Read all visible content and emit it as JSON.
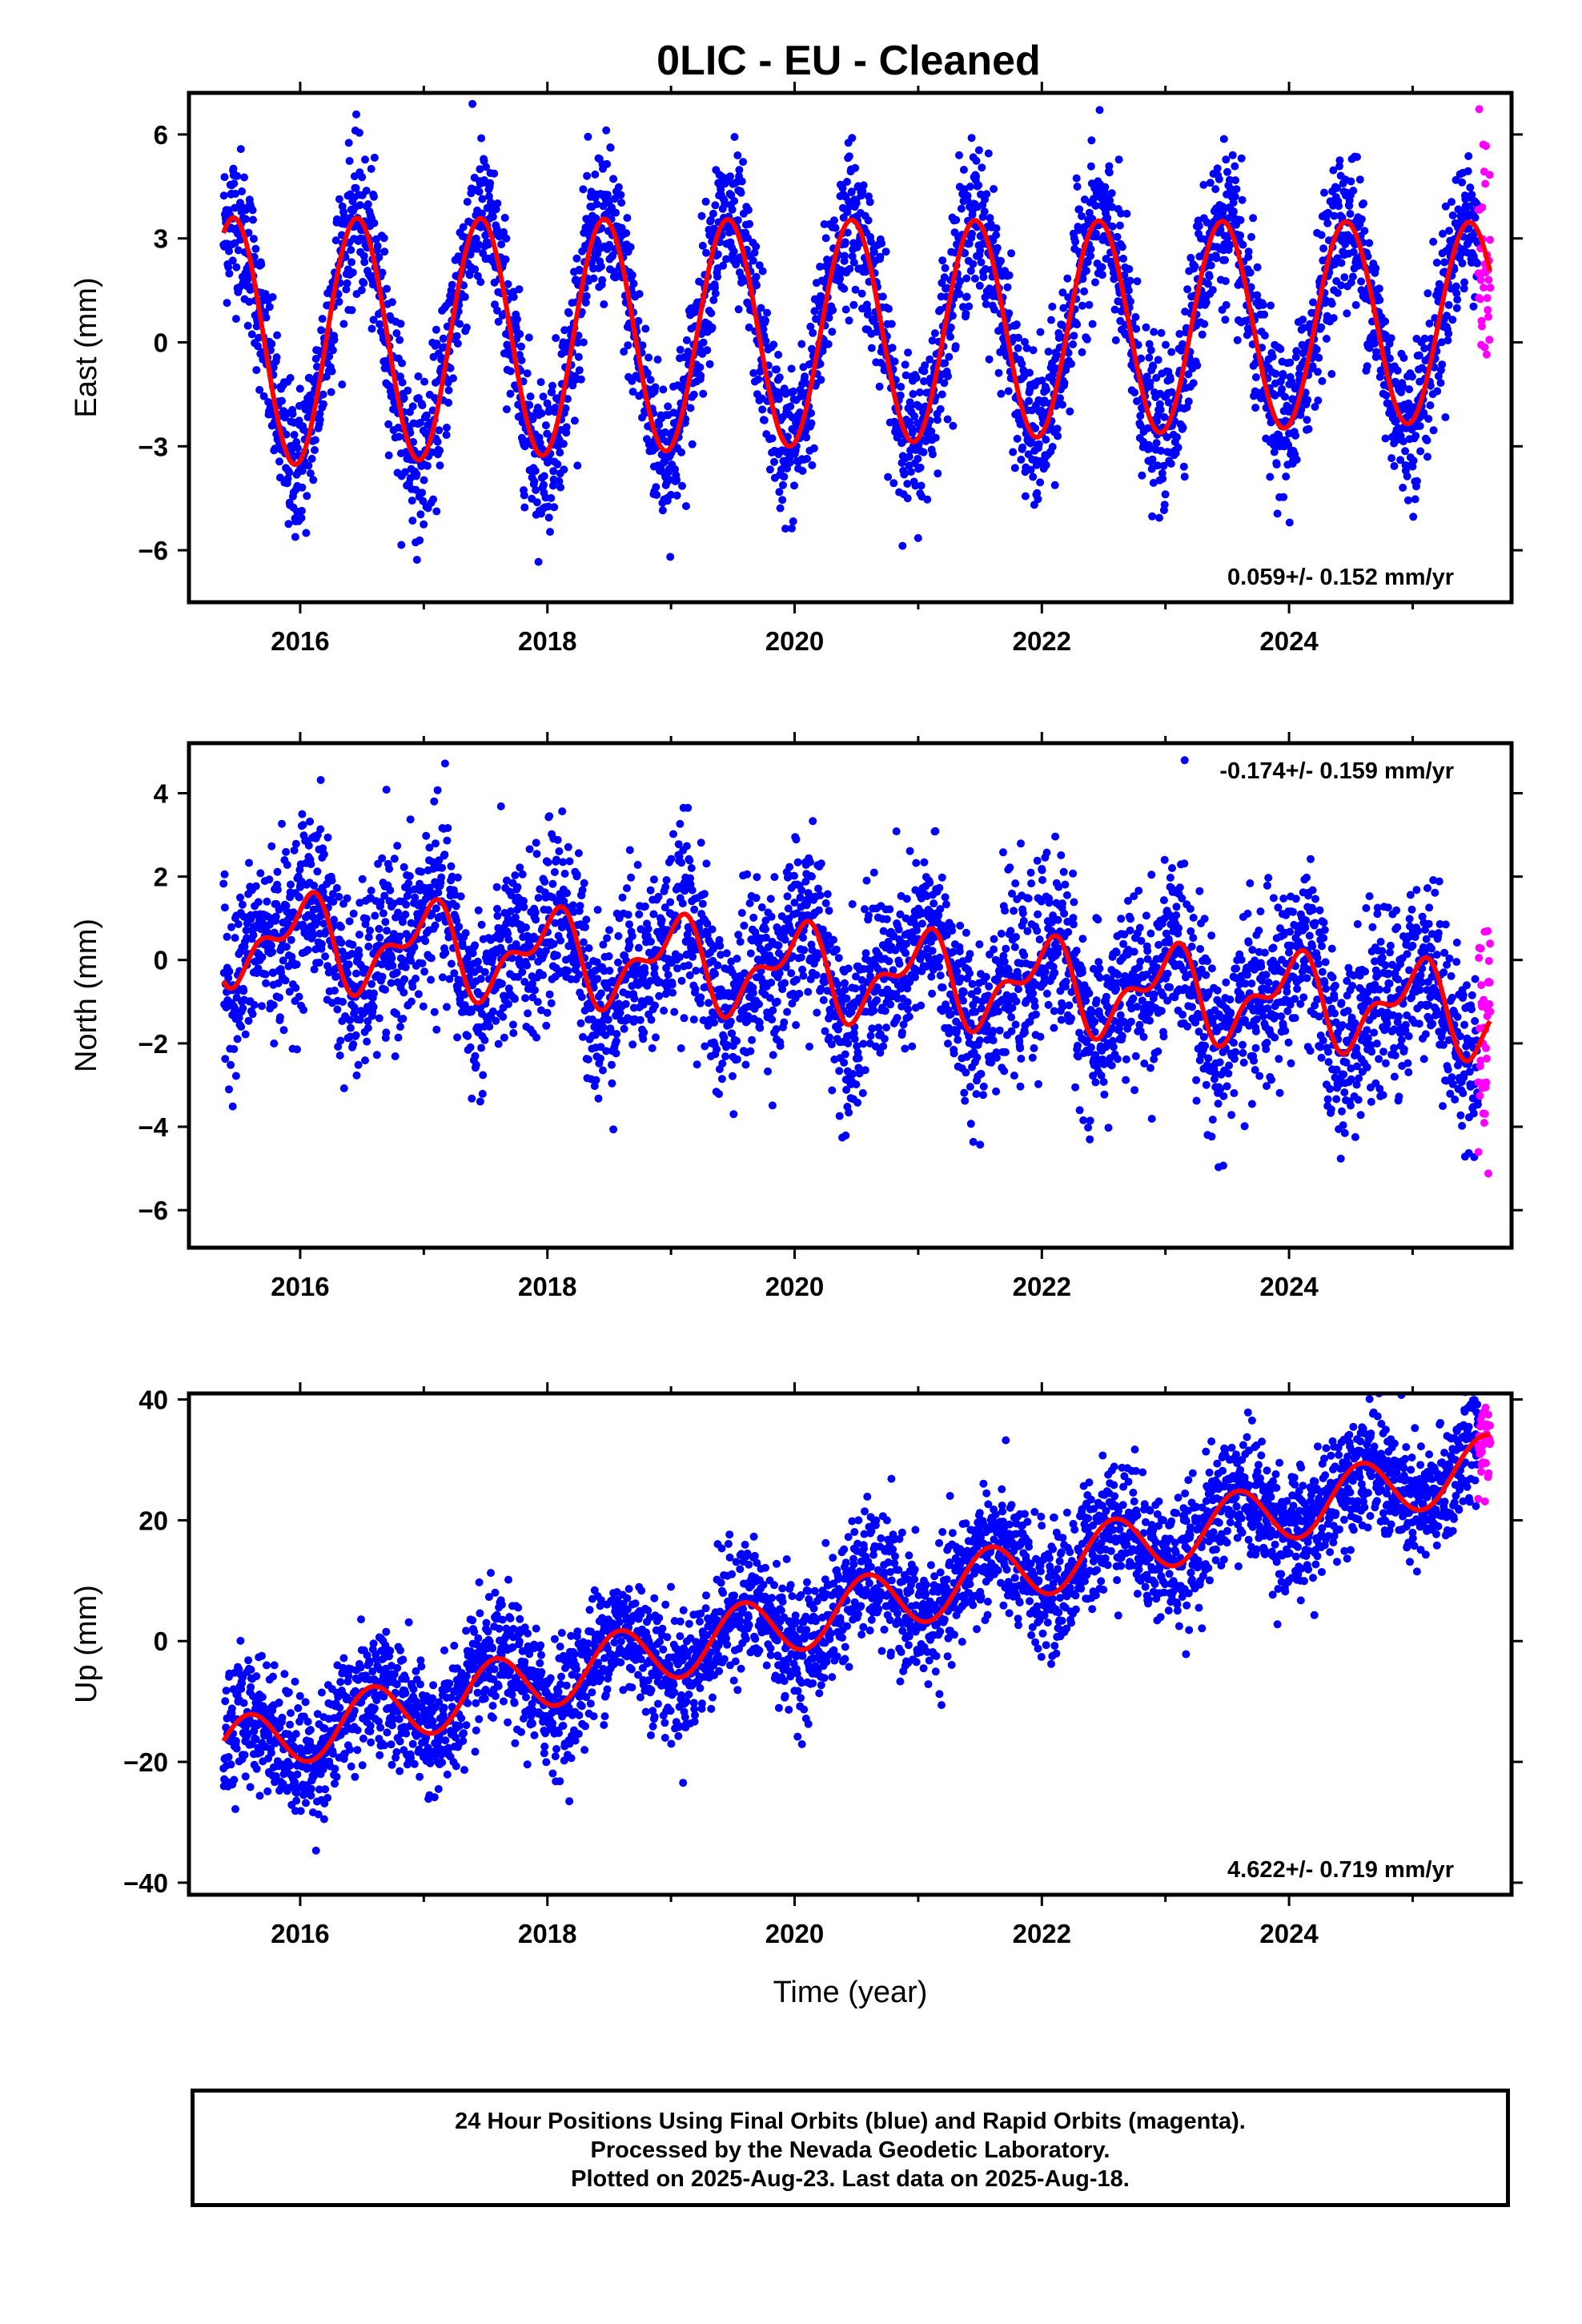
{
  "title": "0LIC  - EU - Cleaned",
  "footer": {
    "line1": "24 Hour Positions Using Final Orbits (blue) and Rapid Orbits (magenta).",
    "line2": "Processed by the Nevada Geodetic Laboratory.",
    "line3": "Plotted on 2025-Aug-23. Last data on 2025-Aug-18."
  },
  "colors": {
    "final": "#0000ff",
    "rapid": "#ff00ff",
    "model": "#ff0000"
  },
  "chart_data": [
    {
      "type": "scatter",
      "ylabel": "East (mm)",
      "xlabel": "",
      "xlim": [
        2015.1,
        2025.8
      ],
      "ylim": [
        -7.5,
        7.2
      ],
      "xticks": [
        2016,
        2018,
        2020,
        2022,
        2024
      ],
      "yticks": [
        -6,
        -3,
        0,
        3,
        6
      ],
      "rate_text": "0.059+/- 0.152 mm/yr",
      "rate_position": "bottom-right",
      "model": {
        "offset": 0.0,
        "rate": 0.059,
        "amp1": 3.6,
        "phase1": 0.46,
        "amp2": 0.0,
        "phase2": 0.0,
        "amp_drift": -0.02
      },
      "series": [
        {
          "kind": "final",
          "start": 2015.38,
          "end": 2025.53,
          "noise": 1.1,
          "color_key": "final"
        },
        {
          "kind": "rapid",
          "start": 2025.53,
          "end": 2025.63,
          "noise": 2.2,
          "color_key": "rapid"
        }
      ]
    },
    {
      "type": "scatter",
      "ylabel": "North (mm)",
      "xlabel": "",
      "xlim": [
        2015.1,
        2025.8
      ],
      "ylim": [
        -6.9,
        5.2
      ],
      "xticks": [
        2016,
        2018,
        2020,
        2022,
        2024
      ],
      "yticks": [
        -6,
        -4,
        -2,
        0,
        2,
        4
      ],
      "rate_text": "-0.174+/- 0.159 mm/yr",
      "rate_position": "top-right",
      "model": {
        "offset": 0.55,
        "rate": -0.174,
        "amp1": 0.9,
        "phase1": 0.02,
        "amp2": 0.5,
        "phase2": 0.15,
        "amp_drift": 0.0
      },
      "series": [
        {
          "kind": "final",
          "start": 2015.38,
          "end": 2025.53,
          "noise": 1.05,
          "color_key": "final"
        },
        {
          "kind": "rapid",
          "start": 2025.53,
          "end": 2025.63,
          "noise": 1.6,
          "color_key": "rapid"
        }
      ]
    },
    {
      "type": "scatter",
      "ylabel": "Up (mm)",
      "xlabel": "Time (year)",
      "xlim": [
        2015.1,
        2025.8
      ],
      "ylim": [
        -42,
        41
      ],
      "xticks": [
        2016,
        2018,
        2020,
        2022,
        2024
      ],
      "yticks": [
        -40,
        -20,
        0,
        20,
        40
      ],
      "rate_text": "4.622+/- 0.719 mm/yr",
      "rate_position": "bottom-right",
      "model": {
        "offset": -18.0,
        "rate": 4.622,
        "amp1": 5.0,
        "phase1": 0.58,
        "amp2": 0.0,
        "phase2": 0.0,
        "amp_drift": 0.0
      },
      "series": [
        {
          "kind": "final",
          "start": 2015.38,
          "end": 2025.53,
          "noise": 5.2,
          "color_key": "final"
        },
        {
          "kind": "rapid",
          "start": 2025.53,
          "end": 2025.63,
          "noise": 4.0,
          "color_key": "rapid"
        }
      ]
    }
  ]
}
